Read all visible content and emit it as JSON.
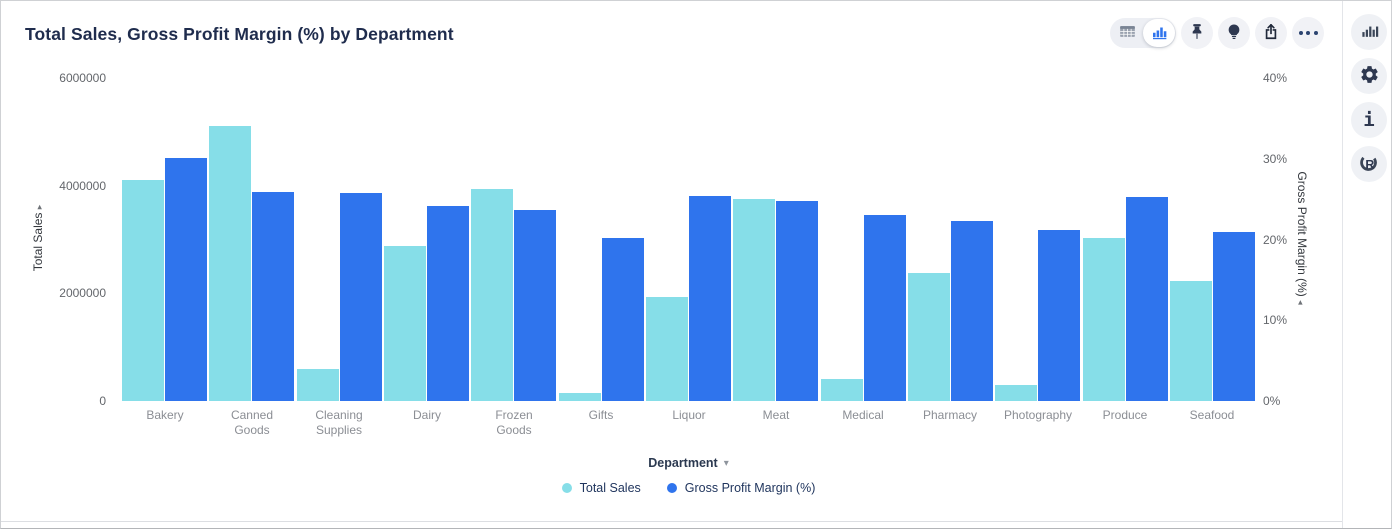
{
  "header": {
    "title": "Total Sales, Gross Profit Margin (%) by Department"
  },
  "toolbar": {
    "icons": [
      "table-view",
      "chart-view",
      "pin",
      "insight-bulb",
      "share",
      "more-options"
    ],
    "accent_color": "#2f74ed"
  },
  "rail": {
    "icons": [
      "chart-type",
      "settings-gear",
      "info",
      "r-logo"
    ]
  },
  "xaxis": {
    "title": "Department",
    "caret": "▾"
  },
  "chart_data": {
    "type": "bar",
    "title": "Total Sales, Gross Profit Margin (%) by Department",
    "grid": false,
    "legend_position": "bottom",
    "categories": [
      "Bakery",
      "Canned Goods",
      "Cleaning Supplies",
      "Dairy",
      "Frozen Goods",
      "Gifts",
      "Liquor",
      "Meat",
      "Medical",
      "Pharmacy",
      "Photography",
      "Produce",
      "Seafood"
    ],
    "xlabel": "Department",
    "left_axis": {
      "title": "Total Sales",
      "arrow": "▸",
      "min": 0,
      "max": 6000000,
      "ticks": [
        "6000000",
        "4000000",
        "2000000",
        "0"
      ]
    },
    "right_axis": {
      "title": "Gross Profit Margin (%)",
      "arrow": "◂",
      "min": 0,
      "max": 40,
      "ticks": [
        "40%",
        "30%",
        "20%",
        "10%",
        "0%"
      ]
    },
    "series": [
      {
        "name": "Total Sales",
        "axis": "left",
        "color": "#86dee8",
        "values": [
          4110000,
          5100000,
          590000,
          2880000,
          3940000,
          150000,
          1940000,
          3760000,
          400000,
          2380000,
          290000,
          3030000,
          2230000
        ]
      },
      {
        "name": "Gross Profit Margin (%)",
        "axis": "right",
        "color": "#2f74ed",
        "values": [
          30.1,
          25.9,
          25.8,
          24.2,
          23.6,
          20.2,
          25.4,
          24.8,
          23.0,
          22.3,
          21.2,
          25.3,
          20.9
        ]
      }
    ]
  }
}
